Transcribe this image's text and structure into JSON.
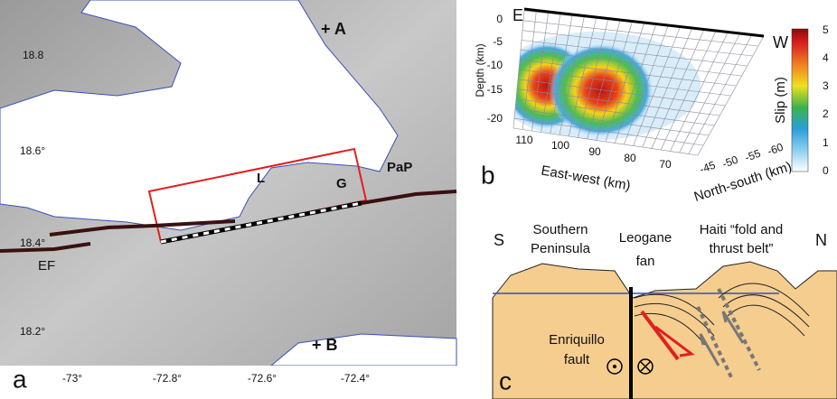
{
  "panel_a": {
    "label": "a",
    "points": [
      "+ A",
      "+ B"
    ],
    "places": [
      "L",
      "G",
      "PaP",
      "EF"
    ],
    "lat_ticks": [
      "18.8",
      "18.6°",
      "18.4°",
      "18.2°"
    ],
    "lon_ticks": [
      "-73°",
      "-72.8°",
      "-72.6°",
      "-72.4°"
    ]
  },
  "panel_b": {
    "label": "b",
    "ends": [
      "E",
      "W"
    ],
    "depth_label": "Depth (km)",
    "depth_ticks": [
      "0",
      "-5",
      "-10",
      "-15",
      "-20"
    ],
    "ew_label": "East-west (km)",
    "ew_ticks": [
      "110",
      "100",
      "90",
      "80",
      "70"
    ],
    "ns_label": "North-south (km)",
    "ns_ticks": [
      "-45",
      "-50",
      "-55",
      "-60"
    ],
    "colorbar_label": "Slip (m)",
    "colorbar_ticks": [
      "0",
      "1",
      "2",
      "3",
      "4",
      "5"
    ]
  },
  "panel_c": {
    "label": "c",
    "ends": [
      "S",
      "N"
    ],
    "southern_peninsula": [
      "Southern",
      "Peninsula"
    ],
    "leogane_fan": [
      "Leogane",
      "fan"
    ],
    "fold_belt": [
      "Haiti “fold and",
      "thrust belt”"
    ],
    "enriquillo_fault": [
      "Enriquillo",
      "fault"
    ]
  }
}
